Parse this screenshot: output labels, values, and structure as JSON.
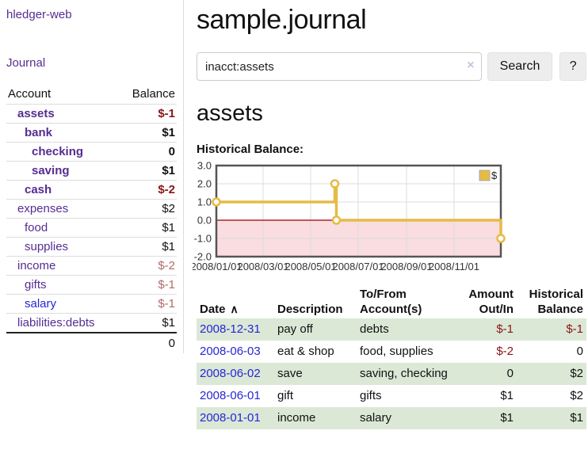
{
  "colors": {
    "purple": "#552d90",
    "blue": "#2626d8",
    "negstrong": "#8b1515",
    "negsoft": "#b36a6a",
    "rowgreen": "#dbe8d6",
    "gold": "#e6bb45",
    "pink": "#fadde0",
    "zerored": "#990000"
  },
  "icons": {
    "clear": "×",
    "sort_ascending": "∧"
  },
  "app": {
    "title": "hledger-web"
  },
  "sidebar": {
    "journal_link": "Journal",
    "accounts_header": {
      "account": "Account",
      "balance": "Balance"
    },
    "accounts": [
      {
        "name": "assets",
        "depth": 1,
        "balance": "$-1",
        "bold": true,
        "neg": "strong"
      },
      {
        "name": "bank",
        "depth": 2,
        "balance": "$1",
        "bold": true,
        "neg": "none"
      },
      {
        "name": "checking",
        "depth": 3,
        "balance": "0",
        "bold": true,
        "neg": "none"
      },
      {
        "name": "saving",
        "depth": 3,
        "balance": "$1",
        "bold": true,
        "neg": "none"
      },
      {
        "name": "cash",
        "depth": 2,
        "balance": "$-2",
        "bold": true,
        "neg": "strong"
      },
      {
        "name": "expenses",
        "depth": 1,
        "balance": "$2",
        "bold": false,
        "neg": "none"
      },
      {
        "name": "food",
        "depth": 2,
        "balance": "$1",
        "bold": false,
        "neg": "none"
      },
      {
        "name": "supplies",
        "depth": 2,
        "balance": "$1",
        "bold": false,
        "neg": "none"
      },
      {
        "name": "income",
        "depth": 1,
        "balance": "$-2",
        "bold": false,
        "neg": "soft"
      },
      {
        "name": "gifts",
        "depth": 2,
        "balance": "$-1",
        "bold": false,
        "neg": "soft"
      },
      {
        "name": "salary",
        "depth": 2,
        "balance": "$-1",
        "bold": false,
        "neg": "soft",
        "link_color": "blue"
      },
      {
        "name": "liabilities:debts",
        "depth": 1,
        "balance": "$1",
        "bold": false,
        "neg": "none"
      }
    ],
    "total": "0"
  },
  "header": {
    "title": "sample.journal"
  },
  "search": {
    "value": "inacct:assets",
    "button": "Search",
    "help_button": "?"
  },
  "account_page": {
    "title": "assets",
    "chart_label": "Historical Balance:"
  },
  "chart_data": {
    "type": "line",
    "title": "Historical Balance of assets",
    "legend": [
      {
        "label": "$",
        "color": "#e6bb45"
      }
    ],
    "legend_position": "top-right",
    "grid": true,
    "ylim": [
      -2.0,
      3.0
    ],
    "y_ticks": [
      3.0,
      2.0,
      1.0,
      0.0,
      -1.0,
      -2.0
    ],
    "x_domain_days": [
      0,
      365
    ],
    "x_tick_days": [
      0,
      60,
      121,
      182,
      244,
      305
    ],
    "x_tick_labels": [
      "2008/01/01",
      "2008/03/01",
      "2008/05/01",
      "2008/07/01",
      "2008/09/01",
      "2008/11/01"
    ],
    "negative_region": true,
    "series": [
      {
        "name": "$",
        "points": [
          [
            0,
            1
          ],
          [
            152,
            1
          ],
          [
            152,
            2
          ],
          [
            154,
            2
          ],
          [
            154,
            0
          ],
          [
            365,
            0
          ],
          [
            365,
            -1
          ]
        ],
        "markers": [
          [
            0,
            1
          ],
          [
            152,
            2
          ],
          [
            154,
            0
          ],
          [
            365,
            -1
          ]
        ],
        "marker_dates_values": {
          "2008-01-01": 1,
          "2008-06-01": 2,
          "2008-06-03": 0,
          "2008-12-31": -1
        }
      }
    ]
  },
  "register": {
    "columns": [
      {
        "line1": "Date",
        "line2": "",
        "align": "left",
        "sortable": true
      },
      {
        "line1": "Description",
        "line2": "",
        "align": "left"
      },
      {
        "line1": "To/From",
        "line2": "Account(s)",
        "align": "left"
      },
      {
        "line1": "Amount",
        "line2": "Out/In",
        "align": "right"
      },
      {
        "line1": "Historical",
        "line2": "Balance",
        "align": "right"
      }
    ],
    "rows": [
      {
        "date": "2008-12-31",
        "description": "pay off",
        "accounts": "debts",
        "amount": "$-1",
        "amount_negative": true,
        "balance": "$-1",
        "balance_negative": true
      },
      {
        "date": "2008-06-03",
        "description": "eat & shop",
        "accounts": "food, supplies",
        "amount": "$-2",
        "amount_negative": true,
        "balance": "0",
        "balance_negative": false
      },
      {
        "date": "2008-06-02",
        "description": "save",
        "accounts": "saving, checking",
        "amount": "0",
        "amount_negative": false,
        "balance": "$2",
        "balance_negative": false
      },
      {
        "date": "2008-06-01",
        "description": "gift",
        "accounts": "gifts",
        "amount": "$1",
        "amount_negative": false,
        "balance": "$2",
        "balance_negative": false
      },
      {
        "date": "2008-01-01",
        "description": "income",
        "accounts": "salary",
        "amount": "$1",
        "amount_negative": false,
        "balance": "$1",
        "balance_negative": false
      }
    ]
  }
}
